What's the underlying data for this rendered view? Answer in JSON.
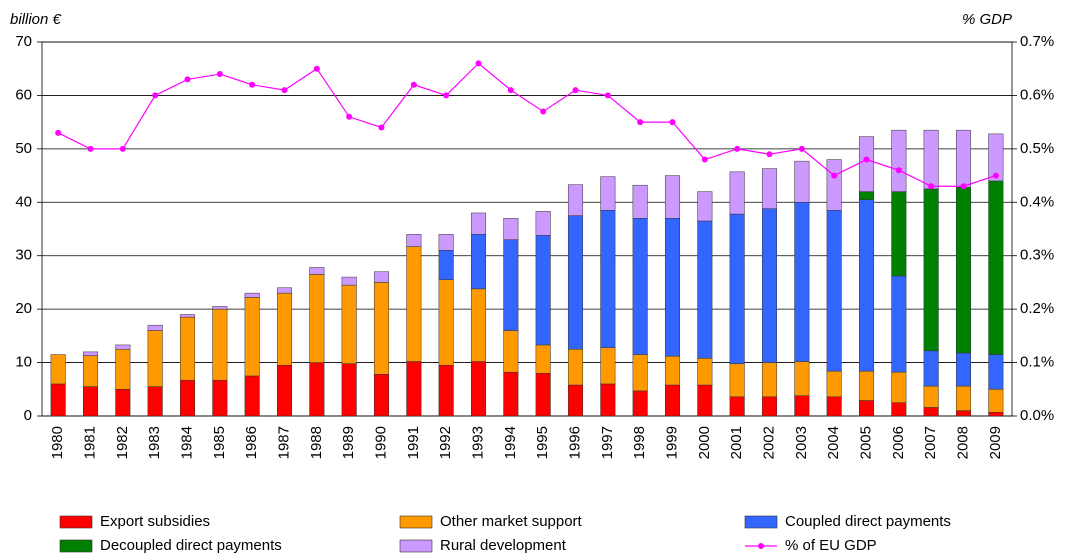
{
  "chart_data": {
    "type": "bar",
    "y_label": "billion €",
    "y2_label": "% GDP",
    "categories": [
      "1980",
      "1981",
      "1982",
      "1983",
      "1984",
      "1985",
      "1986",
      "1987",
      "1988",
      "1989",
      "1990",
      "1991",
      "1992",
      "1993",
      "1994",
      "1995",
      "1996",
      "1997",
      "1998",
      "1999",
      "2000",
      "2001",
      "2002",
      "2003",
      "2004",
      "2005",
      "2006",
      "2007",
      "2008",
      "2009"
    ],
    "ylim": [
      0,
      70
    ],
    "yticks": [
      0,
      10,
      20,
      30,
      40,
      50,
      60,
      70
    ],
    "y2lim": [
      0,
      0.7
    ],
    "y2ticks": [
      {
        "value": 0,
        "label": "0.0%"
      },
      {
        "value": 0.1,
        "label": "0.1%"
      },
      {
        "value": 0.2,
        "label": "0.2%"
      },
      {
        "value": 0.3,
        "label": "0.3%"
      },
      {
        "value": 0.4,
        "label": "0.4%"
      },
      {
        "value": 0.5,
        "label": "0.5%"
      },
      {
        "value": 0.6,
        "label": "0.6%"
      },
      {
        "value": 0.7,
        "label": "0.7%"
      }
    ],
    "grid": true,
    "legend": "bottom",
    "series": [
      {
        "name": "Export subsidies",
        "color": "#ff0000",
        "type": "bar",
        "values": [
          6,
          5.5,
          5,
          5.5,
          6.7,
          6.7,
          7.5,
          9.5,
          10,
          9.8,
          7.8,
          10.2,
          9.5,
          10.2,
          8.2,
          8,
          5.8,
          6,
          4.7,
          5.8,
          5.8,
          3.6,
          3.6,
          3.8,
          3.6,
          2.9,
          2.5,
          1.6,
          1,
          0.7
        ]
      },
      {
        "name": "Other market support",
        "color": "#ff9900",
        "type": "bar",
        "values": [
          5.5,
          5.8,
          7.5,
          10.5,
          11.8,
          13.3,
          14.7,
          13.5,
          16.5,
          14.7,
          17.2,
          21.5,
          16,
          13.6,
          7.8,
          5.3,
          6.7,
          6.8,
          6.8,
          5.4,
          5,
          6.2,
          6.4,
          6.4,
          4.8,
          5.5,
          5.7,
          4,
          4.6,
          4.3
        ]
      },
      {
        "name": "Coupled direct payments",
        "color": "#3366ff",
        "type": "bar",
        "values": [
          0,
          0,
          0,
          0,
          0,
          0,
          0,
          0,
          0,
          0,
          0,
          0,
          5.5,
          10.2,
          17,
          20.5,
          25,
          25.7,
          25.5,
          25.8,
          25.7,
          28,
          28.8,
          29.8,
          30.1,
          32.1,
          18,
          6.6,
          6.2,
          6.5
        ]
      },
      {
        "name": "Decoupled direct payments",
        "color": "#008000",
        "type": "bar",
        "values": [
          0,
          0,
          0,
          0,
          0,
          0,
          0,
          0,
          0,
          0,
          0,
          0,
          0,
          0,
          0,
          0,
          0,
          0,
          0,
          0,
          0,
          0,
          0,
          0,
          0,
          1.5,
          15.8,
          30.3,
          31,
          32.5
        ]
      },
      {
        "name": "Rural development",
        "color": "#cc99ff",
        "type": "bar",
        "values": [
          0,
          0.7,
          0.8,
          1,
          0.5,
          0.5,
          0.8,
          1,
          1.3,
          1.5,
          2,
          2.3,
          3,
          4,
          4,
          4.5,
          5.8,
          6.3,
          6.2,
          8,
          5.5,
          7.9,
          7.5,
          7.7,
          9.5,
          10.3,
          11.5,
          11,
          10.7,
          8.8
        ]
      },
      {
        "name": "% of EU GDP",
        "color": "#ff00ff",
        "type": "line",
        "axis": "y2",
        "values": [
          0.53,
          0.5,
          0.5,
          0.6,
          0.63,
          0.64,
          0.62,
          0.61,
          0.65,
          0.56,
          0.54,
          0.62,
          0.6,
          0.66,
          0.61,
          0.57,
          0.61,
          0.6,
          0.55,
          0.55,
          0.48,
          0.5,
          0.49,
          0.5,
          0.45,
          0.48,
          0.46,
          0.43,
          0.43,
          0.45
        ]
      }
    ]
  }
}
